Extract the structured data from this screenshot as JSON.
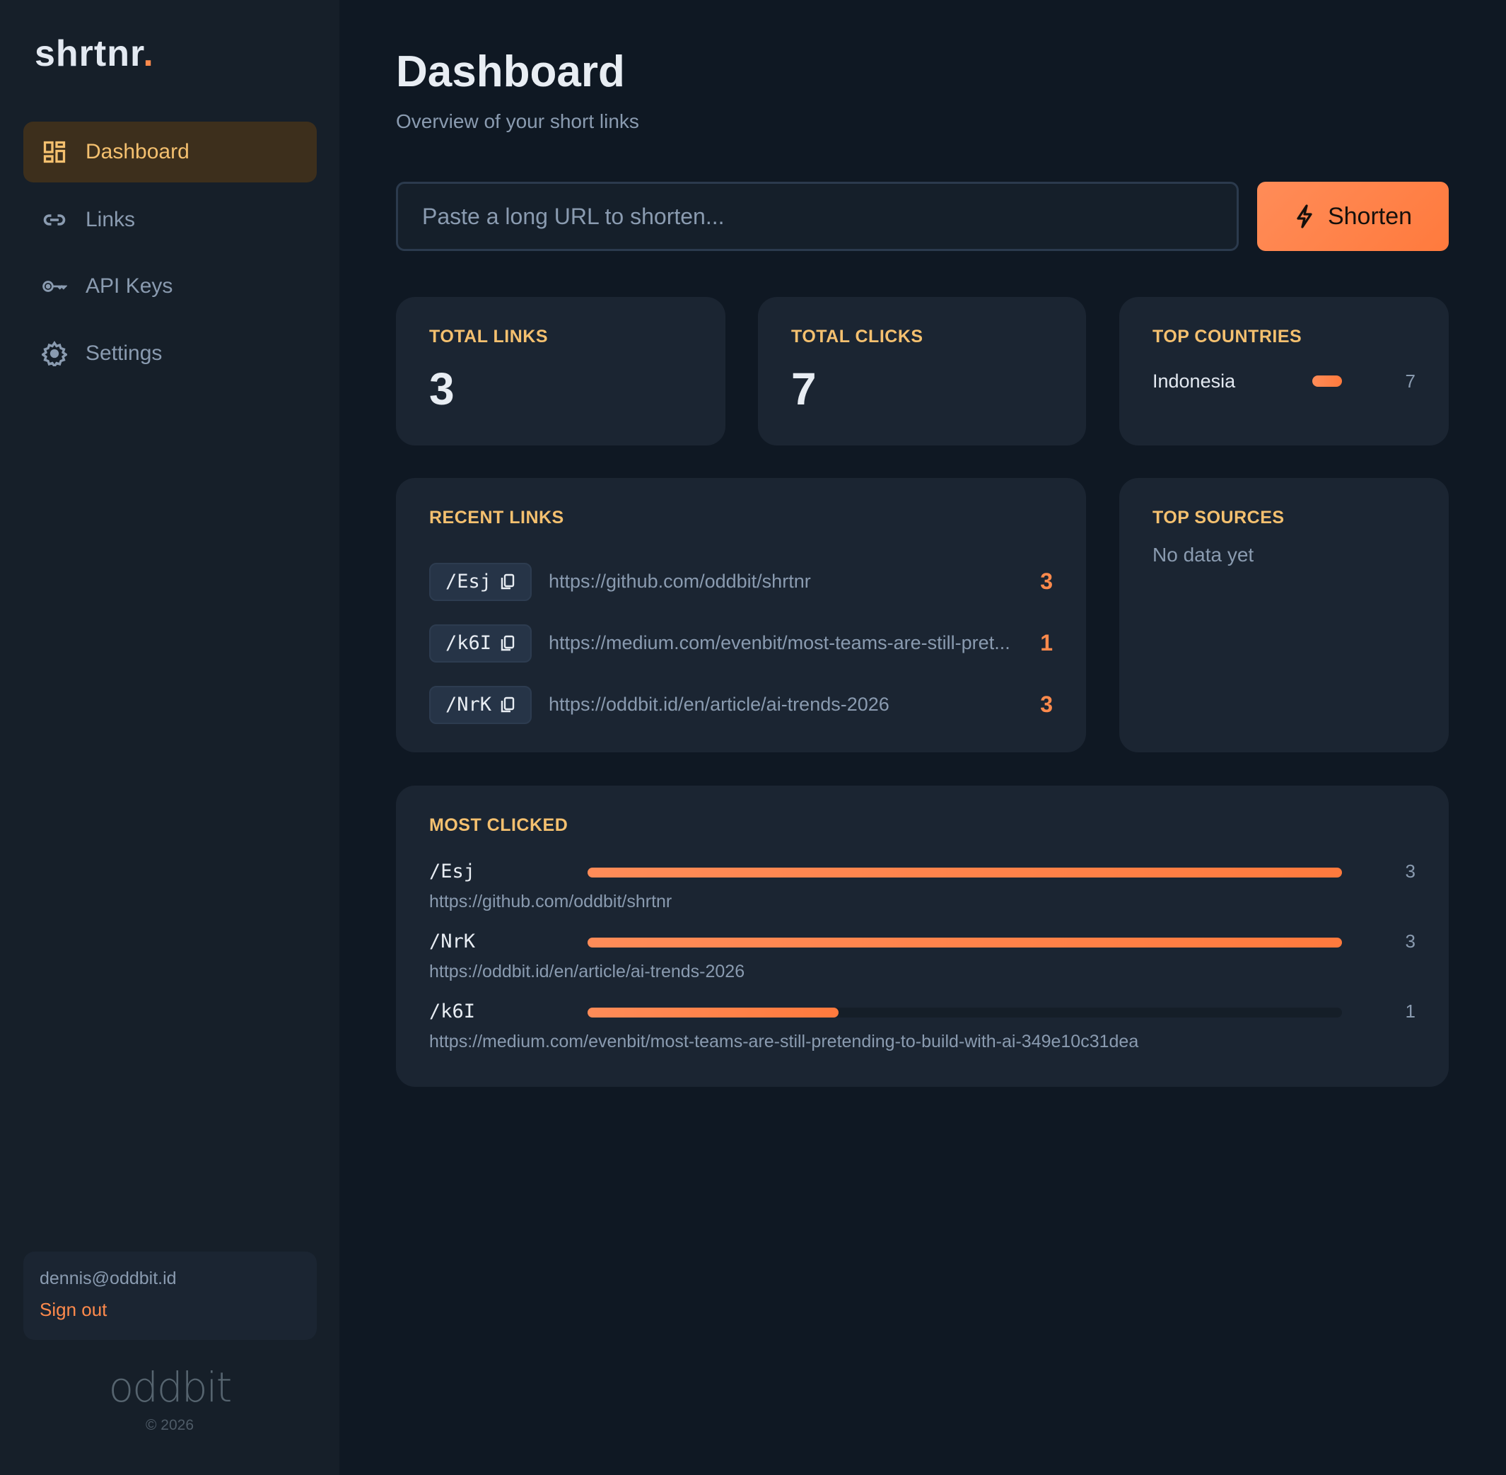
{
  "sidebar": {
    "logo": "shrtnr",
    "logo_dot": ".",
    "items": [
      {
        "label": "Dashboard",
        "icon": "dashboard-icon",
        "active": true
      },
      {
        "label": "Links",
        "icon": "link-icon"
      },
      {
        "label": "API Keys",
        "icon": "key-icon"
      },
      {
        "label": "Settings",
        "icon": "gear-icon"
      }
    ],
    "user_email": "dennis@oddbit.id",
    "sign_out": "Sign out",
    "brand": "oddbit",
    "copyright": "© 2026"
  },
  "header": {
    "title": "Dashboard",
    "subtitle": "Overview of your short links"
  },
  "shortener": {
    "placeholder": "Paste a long URL to shorten...",
    "value": "",
    "button": "Shorten",
    "button_icon": "bolt-icon"
  },
  "stats": {
    "total_links": {
      "label": "TOTAL LINKS",
      "value": "3"
    },
    "total_clicks": {
      "label": "TOTAL CLICKS",
      "value": "7"
    },
    "top_countries": {
      "label": "TOP COUNTRIES",
      "items": [
        {
          "name": "Indonesia",
          "count": "7",
          "fraction": 1
        }
      ]
    }
  },
  "recent_links": {
    "label": "RECENT LINKS",
    "items": [
      {
        "code": "/Esj",
        "url": "https://github.com/oddbit/shrtnr",
        "clicks": "3"
      },
      {
        "code": "/k6I",
        "url": "https://medium.com/evenbit/most-teams-are-still-pret...",
        "clicks": "1"
      },
      {
        "code": "/NrK",
        "url": "https://oddbit.id/en/article/ai-trends-2026",
        "clicks": "3"
      }
    ]
  },
  "top_sources": {
    "label": "TOP SOURCES",
    "empty": "No data yet"
  },
  "most_clicked": {
    "label": "MOST CLICKED",
    "items": [
      {
        "code": "/Esj",
        "url": "https://github.com/oddbit/shrtnr",
        "clicks": "3",
        "fraction": 1
      },
      {
        "code": "/NrK",
        "url": "https://oddbit.id/en/article/ai-trends-2026",
        "clicks": "3",
        "fraction": 1
      },
      {
        "code": "/k6I",
        "url": "https://medium.com/evenbit/most-teams-are-still-pretending-to-build-with-ai-349e10c31dea",
        "clicks": "1",
        "fraction": 0.333
      }
    ]
  },
  "colors": {
    "accent": "#ff8a4c",
    "label": "#f4c06f",
    "background": "#0f1823",
    "card": "#1b2532"
  }
}
